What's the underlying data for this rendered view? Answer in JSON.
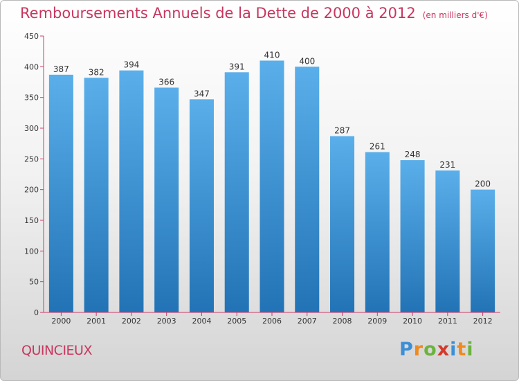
{
  "header": {
    "title": "Remboursements Annuels de la Dette de 2000 à 2012",
    "unit": "(en milliers d'€)"
  },
  "footer": {
    "town": "QUINCIEUX",
    "logo_letters": [
      {
        "char": "P",
        "color": "#3a8fd6"
      },
      {
        "char": "r",
        "color": "#f08a1c"
      },
      {
        "char": "o",
        "color": "#6cb33e"
      },
      {
        "char": "x",
        "color": "#d33a2c"
      },
      {
        "char": "i",
        "color": "#3a8fd6"
      },
      {
        "char": "t",
        "color": "#f08a1c"
      },
      {
        "char": "i",
        "color": "#6cb33e"
      }
    ]
  },
  "chart_data": {
    "type": "bar",
    "categories": [
      "2000",
      "2001",
      "2002",
      "2003",
      "2004",
      "2005",
      "2006",
      "2007",
      "2008",
      "2009",
      "2010",
      "2011",
      "2012"
    ],
    "values": [
      387,
      382,
      394,
      366,
      347,
      391,
      410,
      400,
      287,
      261,
      248,
      231,
      200
    ],
    "ylim": [
      0,
      450
    ],
    "yticks": [
      0,
      50,
      100,
      150,
      200,
      250,
      300,
      350,
      400,
      450
    ],
    "grid": false,
    "bar_color_top": "#5aafea",
    "bar_color_bottom": "#2273b5",
    "axis_color": "#d13a6a"
  }
}
